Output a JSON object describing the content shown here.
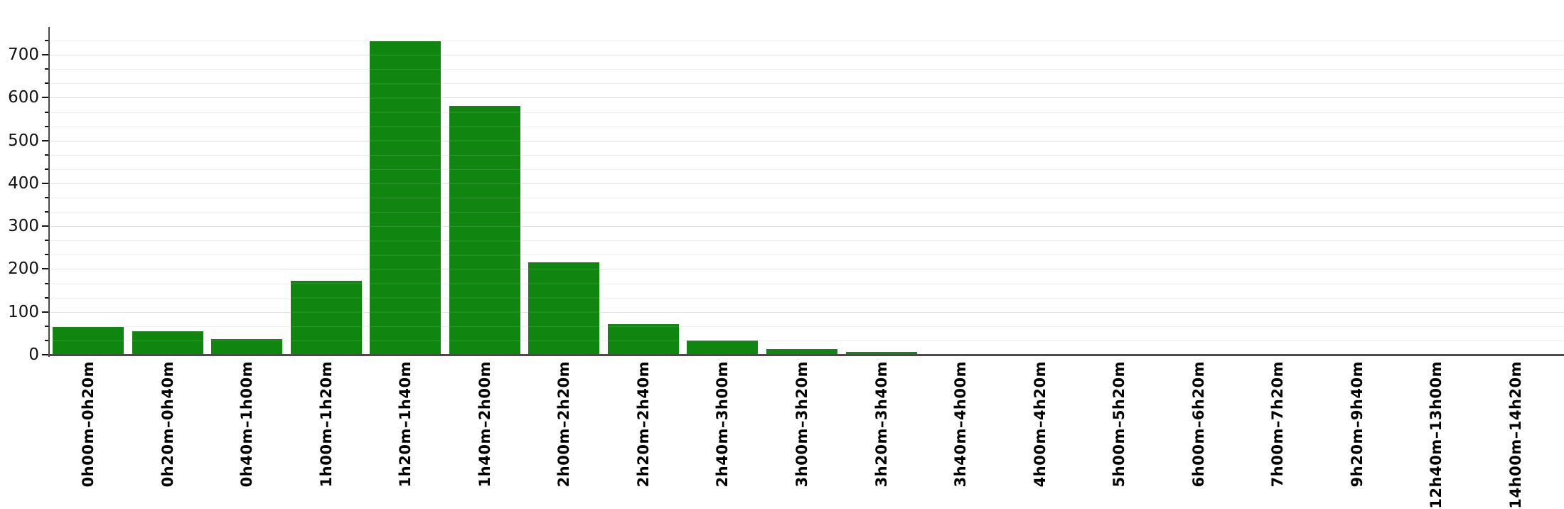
{
  "chart_data": {
    "type": "bar",
    "title": "",
    "xlabel": "",
    "ylabel": "",
    "categories": [
      "0h00m–0h20m",
      "0h20m–0h40m",
      "0h40m–1h00m",
      "1h00m–1h20m",
      "1h20m–1h40m",
      "1h40m–2h00m",
      "2h00m–2h20m",
      "2h20m–2h40m",
      "2h40m–3h00m",
      "3h00m–3h20m",
      "3h20m–3h40m",
      "3h40m–4h00m",
      "4h00m–4h20m",
      "5h00m–5h20m",
      "6h00m–6h20m",
      "7h00m–7h20m",
      "9h20m–9h40m",
      "12h40m–13h00m",
      "14h00m–14h20m"
    ],
    "values": [
      64,
      55,
      37,
      173,
      732,
      581,
      215,
      72,
      34,
      14,
      7,
      2,
      2,
      1,
      1,
      1,
      1,
      1,
      1
    ],
    "y_ticks": [
      0,
      100,
      200,
      300,
      400,
      500,
      600,
      700
    ],
    "ylim": [
      0,
      765
    ],
    "grid": "horizontal",
    "legend_position": "none",
    "bar_color": "#108510",
    "bar_stripe_color": "#2e962e",
    "minor_grid_color": "#efefef",
    "major_grid_color": "#e3e3e3",
    "axis_color": "#4a4a4a",
    "tick_color": "#151515",
    "label_color": "#000000"
  }
}
